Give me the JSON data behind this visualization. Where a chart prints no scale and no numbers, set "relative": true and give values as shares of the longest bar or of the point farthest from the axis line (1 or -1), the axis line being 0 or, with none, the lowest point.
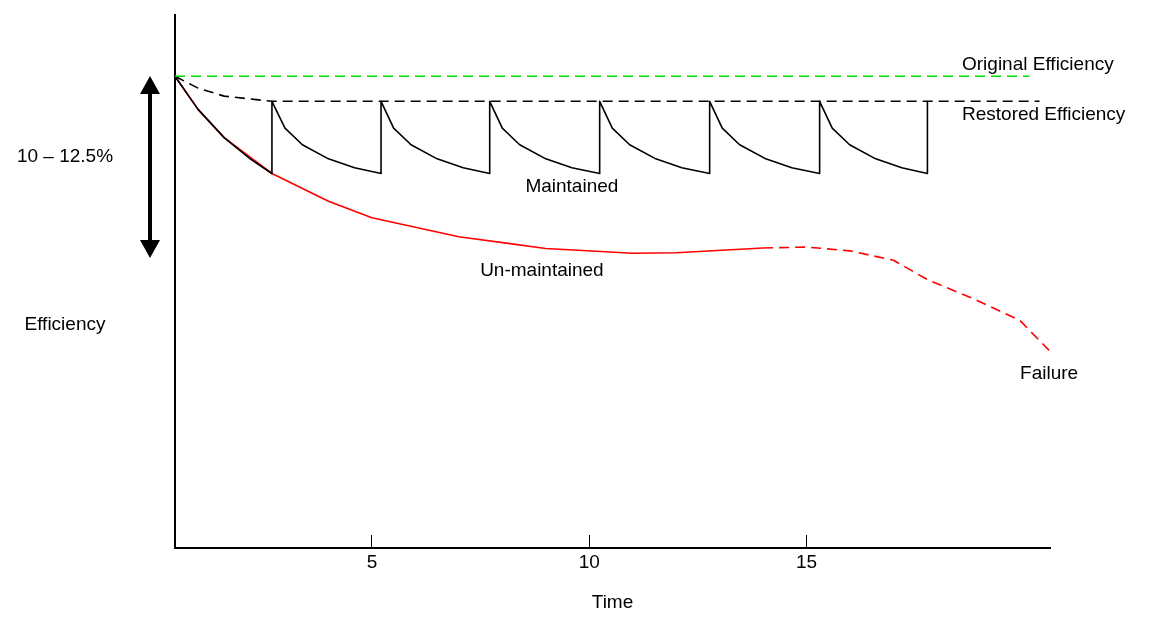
{
  "chart_data": {
    "type": "line",
    "xlabel": "Time",
    "ylabel": "Efficiency",
    "relative": true,
    "tick_labels": "x",
    "legend": false,
    "marker": "none",
    "xlim": [
      0.47,
      20.6
    ],
    "xticks": [
      5,
      10,
      15
    ],
    "series": [
      {
        "name": "Original Efficiency",
        "color": "#00dd00",
        "line_style": "dashed",
        "x": [
          0.47,
          20.13
        ],
        "values": [
          1,
          1
        ]
      },
      {
        "name": "Restored Efficiency",
        "color": "#000000",
        "line_style": "dashed",
        "x": [
          0.47,
          1.0,
          1.6,
          2.7,
          20.36
        ],
        "values": [
          1,
          0.975,
          0.958,
          0.947,
          0.947
        ]
      },
      {
        "name": "Maintained",
        "color": "#000000",
        "line_style": "solid",
        "x": [
          0.47,
          1.0,
          1.6,
          2.2,
          2.7,
          2.7,
          3.0,
          3.4,
          4.0,
          4.6,
          5.21,
          5.21,
          5.5,
          5.9,
          6.5,
          7.1,
          7.71,
          7.71,
          8.0,
          8.4,
          9.0,
          9.6,
          10.24,
          10.24,
          10.53,
          10.93,
          11.53,
          12.13,
          12.77,
          12.77,
          13.06,
          13.46,
          14.06,
          14.66,
          15.3,
          15.3,
          15.59,
          15.99,
          16.59,
          17.19,
          17.78,
          17.78
        ],
        "values": [
          1,
          0.93,
          0.87,
          0.825,
          0.794,
          0.947,
          0.89,
          0.855,
          0.825,
          0.806,
          0.794,
          0.947,
          0.89,
          0.855,
          0.825,
          0.806,
          0.794,
          0.947,
          0.89,
          0.855,
          0.825,
          0.806,
          0.794,
          0.947,
          0.89,
          0.855,
          0.825,
          0.806,
          0.794,
          0.947,
          0.89,
          0.855,
          0.825,
          0.806,
          0.794,
          0.947,
          0.89,
          0.855,
          0.825,
          0.806,
          0.794,
          0.947
        ]
      },
      {
        "name": "Un-maintained",
        "color": "#ff0000",
        "line_style": "solid",
        "x": [
          0.47,
          1.0,
          1.6,
          2.7,
          4,
          5,
          7,
          9,
          11,
          12,
          14
        ],
        "values": [
          1,
          0.93,
          0.87,
          0.794,
          0.735,
          0.7,
          0.66,
          0.635,
          0.625,
          0.626,
          0.636
        ]
      },
      {
        "color": "#ff0000",
        "line_style": "dashed",
        "x": [
          14,
          15,
          16,
          17,
          17.8,
          18.8,
          19.9,
          20.58
        ],
        "values": [
          0.636,
          0.638,
          0.63,
          0.61,
          0.568,
          0.53,
          0.483,
          0.419
        ]
      }
    ],
    "annotations": [
      "10 – 12.5%",
      {
        "text": "Failure",
        "x": 20.58,
        "y": 0.419
      }
    ]
  }
}
